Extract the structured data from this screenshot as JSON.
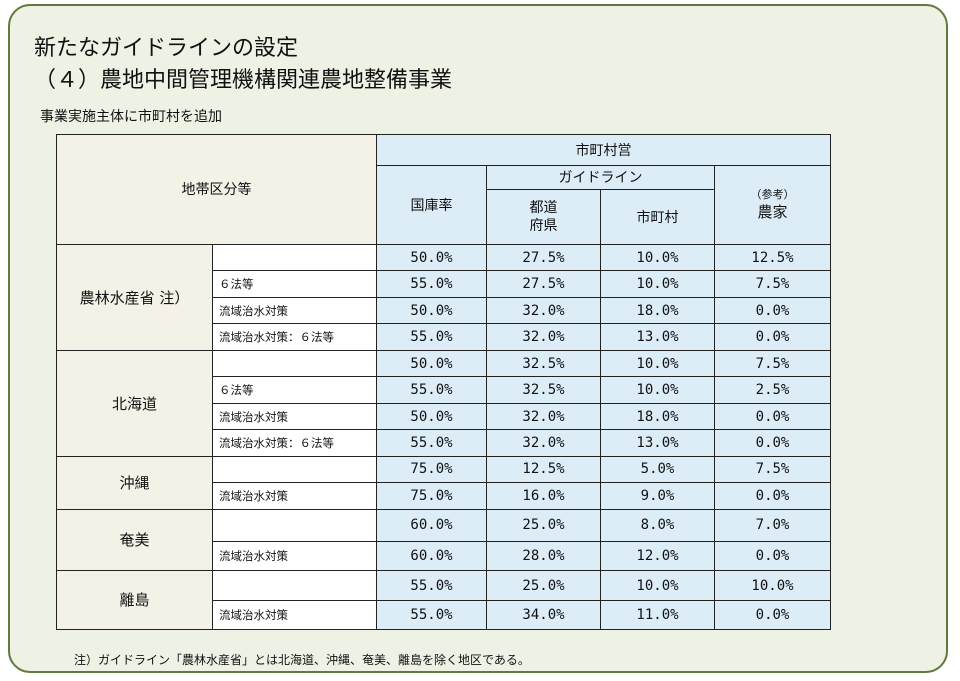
{
  "title": "新たなガイドラインの設定",
  "subtitle_heading": "（４）農地中間管理機構関連農地整備事業",
  "note_line": "事業実施主体に市町村を追加",
  "header": {
    "region_col": "地帯区分等",
    "municipal": "市町村営",
    "guideline": "ガイドライン",
    "national_rate": "国庫率",
    "prefecture": "都道\n府県",
    "municipality": "市町村",
    "reference": "（参考）",
    "farmers": "農家"
  },
  "groups": [
    {
      "region": "農林水産省 注）",
      "rows": [
        {
          "sub": "",
          "values": [
            "50.0%",
            "27.5%",
            "10.0%",
            "12.5%"
          ]
        },
        {
          "sub": "６法等",
          "values": [
            "55.0%",
            "27.5%",
            "10.0%",
            "7.5%"
          ]
        },
        {
          "sub": "流域治水対策",
          "values": [
            "50.0%",
            "32.0%",
            "18.0%",
            "0.0%"
          ]
        },
        {
          "sub": "流域治水対策：６法等",
          "values": [
            "55.0%",
            "32.0%",
            "13.0%",
            "0.0%"
          ]
        }
      ]
    },
    {
      "region": "北海道",
      "rows": [
        {
          "sub": "",
          "values": [
            "50.0%",
            "32.5%",
            "10.0%",
            "7.5%"
          ]
        },
        {
          "sub": "６法等",
          "values": [
            "55.0%",
            "32.5%",
            "10.0%",
            "2.5%"
          ]
        },
        {
          "sub": "流域治水対策",
          "values": [
            "50.0%",
            "32.0%",
            "18.0%",
            "0.0%"
          ]
        },
        {
          "sub": "流域治水対策：６法等",
          "values": [
            "55.0%",
            "32.0%",
            "13.0%",
            "0.0%"
          ]
        }
      ]
    },
    {
      "region": "沖縄",
      "rows": [
        {
          "sub": "",
          "values": [
            "75.0%",
            "12.5%",
            "5.0%",
            "7.5%"
          ]
        },
        {
          "sub": "流域治水対策",
          "values": [
            "75.0%",
            "16.0%",
            "9.0%",
            "0.0%"
          ]
        }
      ]
    },
    {
      "region": "奄美",
      "rows": [
        {
          "sub": "",
          "values": [
            "60.0%",
            "25.0%",
            "8.0%",
            "7.0%"
          ]
        },
        {
          "sub": "流域治水対策",
          "values": [
            "60.0%",
            "28.0%",
            "12.0%",
            "0.0%"
          ]
        }
      ]
    },
    {
      "region": "離島",
      "rows": [
        {
          "sub": "",
          "values": [
            "55.0%",
            "25.0%",
            "10.0%",
            "10.0%"
          ]
        },
        {
          "sub": "流域治水対策",
          "values": [
            "55.0%",
            "34.0%",
            "11.0%",
            "0.0%"
          ]
        }
      ]
    }
  ],
  "footnote": "注）ガイドライン「農林水産省」とは北海道、沖縄、奄美、離島を除く地区である。",
  "colors": {
    "border": "#5f7a3a",
    "panel_bg": "#eef2e5",
    "header_beige": "#f4f1e7",
    "cell_blue": "#dcedf8"
  }
}
